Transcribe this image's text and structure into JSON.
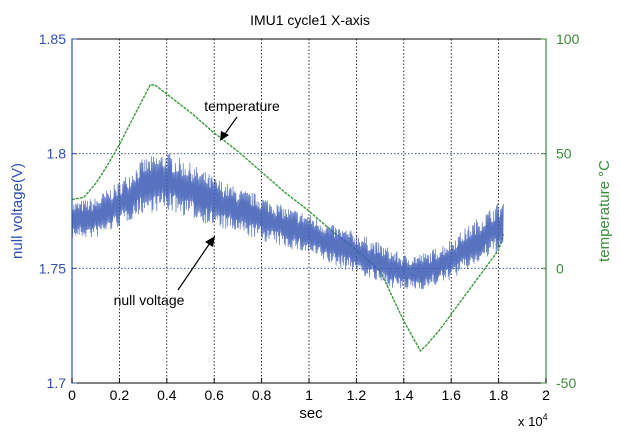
{
  "chart_data": {
    "type": "line",
    "title": "IMU1 cycle1 X-axis",
    "xlabel": "sec",
    "x_multiplier_label": "x 10",
    "x_multiplier_exp": "4",
    "ylabel_left": "null voltage(V)",
    "ylabel_right": "temperature °C",
    "xlim": [
      0,
      2
    ],
    "ylim_left": [
      1.7,
      1.85
    ],
    "ylim_right": [
      -50,
      100
    ],
    "xticks": [
      "0",
      "0.2",
      "0.4",
      "0.6",
      "0.8",
      "1",
      "1.2",
      "1.4",
      "1.6",
      "1.8",
      "2"
    ],
    "yticks_left": [
      "1.7",
      "1.75",
      "1.8",
      "1.85"
    ],
    "yticks_right": [
      "-50",
      "0",
      "50",
      "100"
    ],
    "grid": true,
    "colors": {
      "voltage": "#3a5bb5",
      "temperature": "#3c9a3c",
      "left_axis": "#2f4fb0",
      "right_axis": "#3c8a3c",
      "grid": "#000000",
      "hgrid": "#1f3fa8"
    },
    "annotations": [
      {
        "text": "temperature",
        "series": "temperature",
        "x": 0.63,
        "y": 1.806
      },
      {
        "text": "null voltage",
        "series": "null voltage",
        "x": 0.6,
        "y": 1.766
      }
    ],
    "series": [
      {
        "axis": "right",
        "x": [
          0,
          0.05,
          0.1,
          0.15,
          0.2,
          0.25,
          0.3,
          0.33,
          0.35,
          0.4,
          0.5,
          0.6,
          0.7,
          0.8,
          0.9,
          1.0,
          1.1,
          1.2,
          1.3,
          1.4,
          1.47,
          1.5,
          1.55,
          1.6,
          1.7,
          1.8,
          1.82
        ],
        "values": [
          30,
          31,
          37,
          45,
          54,
          64,
          74,
          80,
          80,
          76,
          68,
          59,
          51,
          42,
          33,
          25,
          16,
          8,
          -1,
          -23,
          -36,
          -33,
          -27,
          -20,
          -6,
          8,
          15
        ]
      },
      {
        "axis": "left",
        "x": [
          0,
          0.1,
          0.2,
          0.3,
          0.4,
          0.5,
          0.6,
          0.7,
          0.8,
          0.9,
          1.0,
          1.1,
          1.2,
          1.3,
          1.4,
          1.5,
          1.6,
          1.7,
          1.8,
          1.82
        ],
        "values": [
          1.771,
          1.772,
          1.778,
          1.786,
          1.788,
          1.784,
          1.779,
          1.775,
          1.772,
          1.768,
          1.765,
          1.76,
          1.757,
          1.752,
          1.748,
          1.749,
          1.754,
          1.761,
          1.768,
          1.769
        ],
        "spread": [
          0.008,
          0.009,
          0.01,
          0.012,
          0.013,
          0.012,
          0.011,
          0.01,
          0.01,
          0.009,
          0.009,
          0.009,
          0.009,
          0.009,
          0.008,
          0.008,
          0.009,
          0.01,
          0.011,
          0.011
        ]
      }
    ]
  }
}
